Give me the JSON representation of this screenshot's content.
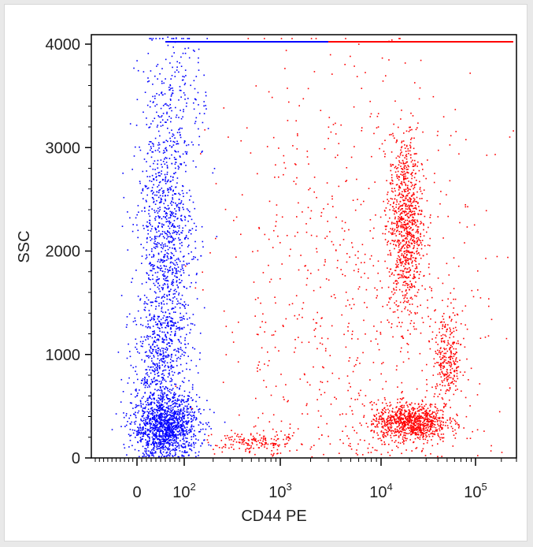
{
  "chart_data": {
    "type": "scatter",
    "title": "",
    "xlabel": "CD44 PE",
    "ylabel": "SSC",
    "x_scale": "biexponential",
    "ylim": [
      0,
      4100
    ],
    "grid": false,
    "x_tick_labels": [
      {
        "value": 0,
        "base": "0",
        "exp": ""
      },
      {
        "value": 100,
        "base": "10",
        "exp": "2"
      },
      {
        "value": 1000,
        "base": "10",
        "exp": "3"
      },
      {
        "value": 10000,
        "base": "10",
        "exp": "4"
      },
      {
        "value": 100000,
        "base": "10",
        "exp": "5"
      }
    ],
    "y_ticks": [
      0,
      1000,
      2000,
      3000,
      4000
    ],
    "y_tick_labels": [
      "0",
      "1000",
      "2000",
      "3000",
      "4000"
    ],
    "series": [
      {
        "color": "#0000ff",
        "populations": [
          {
            "x_center": 60,
            "y_center": 300,
            "x_spread_log": 0.35,
            "y_spread": 150,
            "share": 0.42
          },
          {
            "x_center": 60,
            "y_center": 2100,
            "x_spread_log": 0.3,
            "y_spread": 550,
            "share": 0.3
          },
          {
            "x_center": 50,
            "y_center": 900,
            "x_spread_log": 0.3,
            "y_spread": 350,
            "share": 0.2
          },
          {
            "x_center": 80,
            "y_center": 3500,
            "x_spread_log": 0.35,
            "y_spread": 400,
            "share": 0.08
          }
        ]
      },
      {
        "color": "#ff0000",
        "populations": [
          {
            "x_center": 18000,
            "y_center": 2250,
            "x_spread_log": 0.09,
            "y_spread": 450,
            "share": 0.3
          },
          {
            "x_center": 20000,
            "y_center": 350,
            "x_spread_log": 0.2,
            "y_spread": 90,
            "share": 0.3
          },
          {
            "x_center": 50000,
            "y_center": 950,
            "x_spread_log": 0.08,
            "y_spread": 250,
            "share": 0.1
          },
          {
            "x_center": 500,
            "y_center": 150,
            "x_spread_log": 0.2,
            "y_spread": 60,
            "share": 0.05
          },
          {
            "x_center": 5000,
            "y_center": 1500,
            "x_spread_log": 0.7,
            "y_spread": 1200,
            "share": 0.25
          }
        ]
      }
    ]
  },
  "colors": {
    "negative_population": "#0000ff",
    "positive_population": "#ff0000",
    "axis": "#000000"
  }
}
